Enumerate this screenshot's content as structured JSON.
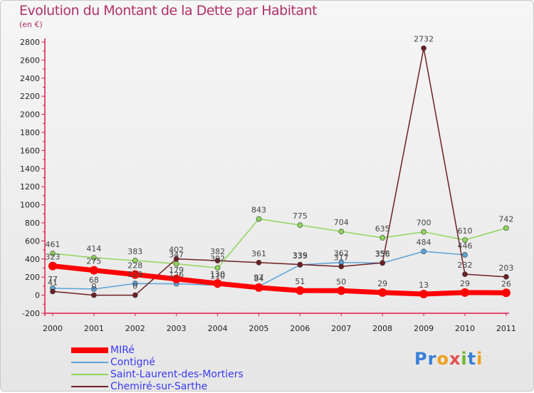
{
  "header": {
    "title": "Evolution du Montant de la Dette par Habitant",
    "unit": "(en €)"
  },
  "logo": {
    "text": "Proxiti"
  },
  "chart_data": {
    "type": "line",
    "title": "Evolution du Montant de la Dette par Habitant",
    "ylabel": "(en €)",
    "xlabel": "",
    "ylim": [
      -200,
      2800
    ],
    "yticks": [
      -200,
      0,
      200,
      400,
      600,
      800,
      1000,
      1200,
      1400,
      1600,
      1800,
      2000,
      2200,
      2400,
      2600,
      2800
    ],
    "categories": [
      "2000",
      "2001",
      "2002",
      "2003",
      "2004",
      "2005",
      "2006",
      "2007",
      "2008",
      "2009",
      "2010",
      "2011"
    ],
    "grid": false,
    "legend_position": "bottom-left",
    "series": [
      {
        "name": "MIRé",
        "color": "#ff0000",
        "values": [
          323,
          275,
          228,
          179,
          130,
          84,
          51,
          50,
          29,
          13,
          29,
          26
        ]
      },
      {
        "name": "Contigné",
        "color": "#5ba3d9",
        "values": [
          77,
          68,
          129,
          126,
          110,
          97,
          335,
          362,
          356,
          484,
          446,
          null
        ]
      },
      {
        "name": "Saint-Laurent-des-Mortiers",
        "color": "#8fd65a",
        "values": [
          461,
          414,
          383,
          347,
          302,
          843,
          775,
          704,
          635,
          700,
          610,
          742
        ]
      },
      {
        "name": "Chemiré-sur-Sarthe",
        "color": "#6e1f24",
        "values": [
          41,
          0,
          0,
          402,
          382,
          361,
          339,
          317,
          358,
          2732,
          232,
          203
        ]
      }
    ],
    "data_labels": [
      {
        "series": 2,
        "labels": [
          "461",
          "414",
          "383",
          "347",
          "302",
          "843",
          "775",
          "704",
          "635",
          "700",
          "610",
          "742"
        ]
      },
      {
        "series": 3,
        "labels": [
          "41",
          "0",
          "0",
          "402",
          "382",
          "361",
          "339",
          "317",
          "358",
          "2732",
          "232",
          "203"
        ]
      },
      {
        "series": 1,
        "labels": [
          "77",
          "68",
          "129",
          "126",
          "110",
          "97",
          "335",
          "362",
          "356",
          "484",
          "446",
          ""
        ]
      },
      {
        "series": 0,
        "labels": [
          "323",
          "275",
          "228",
          "179",
          "130",
          "84",
          "51",
          "50",
          "29",
          "13",
          "29",
          "26"
        ]
      }
    ]
  }
}
